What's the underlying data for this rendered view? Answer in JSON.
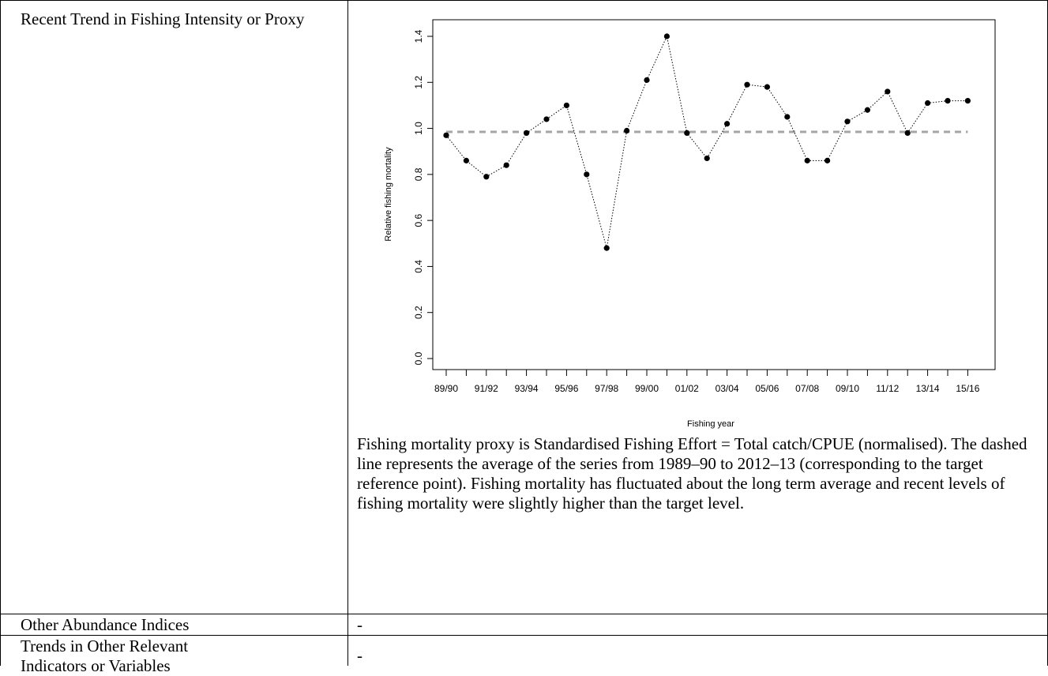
{
  "table": {
    "rows": [
      {
        "label": "Recent Trend in Fishing Intensity or Proxy",
        "caption": "Fishing mortality proxy is Standardised Fishing Effort = Total catch/CPUE (normalised). The dashed line represents the average of the series from 1989–90 to 2012–13 (corresponding to the target reference point). Fishing mortality has fluctuated about the long term average and recent levels of fishing mortality were slightly higher than the target level."
      },
      {
        "label": "Other Abundance Indices",
        "value": "-"
      },
      {
        "label": "Trends in Other Relevant Indicators or Variables",
        "value": "-"
      }
    ]
  },
  "chart_data": {
    "type": "line",
    "title": "",
    "xlabel": "Fishing year",
    "ylabel": "Relative fishing mortality",
    "ylim": [
      0,
      1.4
    ],
    "yticks": [
      0.0,
      0.2,
      0.4,
      0.6,
      0.8,
      1.0,
      1.2,
      1.4
    ],
    "ytick_labels": [
      "0.0",
      "0.2",
      "0.4",
      "0.6",
      "0.8",
      "1.0",
      "1.2",
      "1.4"
    ],
    "categories": [
      "89/90",
      "90/91",
      "91/92",
      "92/93",
      "93/94",
      "94/95",
      "95/96",
      "96/97",
      "97/98",
      "98/99",
      "99/00",
      "00/01",
      "01/02",
      "02/03",
      "03/04",
      "04/05",
      "05/06",
      "06/07",
      "07/08",
      "08/09",
      "09/10",
      "10/11",
      "11/12",
      "12/13",
      "13/14",
      "14/15",
      "15/16"
    ],
    "xtick_labels_shown": [
      "89/90",
      "91/92",
      "93/94",
      "95/96",
      "97/98",
      "99/00",
      "01/02",
      "03/04",
      "05/06",
      "07/08",
      "09/10",
      "11/12",
      "13/14",
      "15/16"
    ],
    "series": [
      {
        "values": [
          0.97,
          0.86,
          0.79,
          0.84,
          0.98,
          1.04,
          1.1,
          0.8,
          0.48,
          0.99,
          1.21,
          1.4,
          0.98,
          0.87,
          1.02,
          1.19,
          1.18,
          1.05,
          0.86,
          0.86,
          1.03,
          1.08,
          1.16,
          0.98,
          1.11,
          1.12,
          1.12
        ],
        "line_style": "dotted",
        "marker": "filled-circle",
        "color": "#000000"
      }
    ],
    "reference_line": {
      "value": 0.985,
      "style": "dashed",
      "color": "#a6a6a6"
    },
    "grid": false,
    "legend": "none"
  }
}
